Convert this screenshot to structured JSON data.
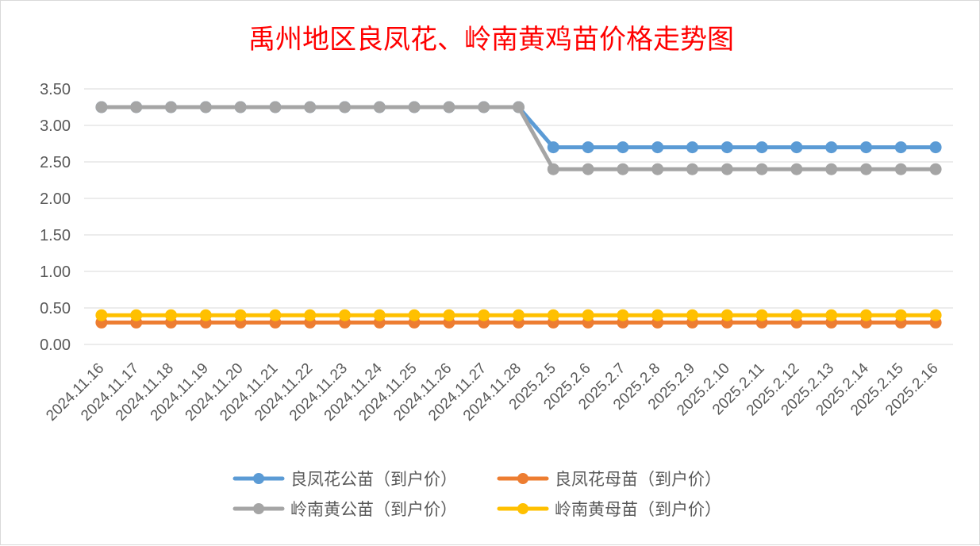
{
  "chart_data": {
    "type": "line",
    "title": "禹州地区良凤花、岭南黄鸡苗价格走势图",
    "xlabel": "",
    "ylabel": "",
    "ylim": [
      0,
      3.5
    ],
    "yticks": [
      "0.00",
      "0.50",
      "1.00",
      "1.50",
      "2.00",
      "2.50",
      "3.00",
      "3.50"
    ],
    "grid": true,
    "legend_position": "bottom",
    "categories": [
      "2024.11.16",
      "2024.11.17",
      "2024.11.18",
      "2024.11.19",
      "2024.11.20",
      "2024.11.21",
      "2024.11.22",
      "2024.11.23",
      "2024.11.24",
      "2024.11.25",
      "2024.11.26",
      "2024.11.27",
      "2024.11.28",
      "2025.2.5",
      "2025.2.6",
      "2025.2.7",
      "2025.2.8",
      "2025.2.9",
      "2025.2.10",
      "2025.2.11",
      "2025.2.12",
      "2025.2.13",
      "2025.2.14",
      "2025.2.15",
      "2025.2.16"
    ],
    "series": [
      {
        "name": "良凤花公苗（到户价）",
        "color": "#5b9bd5",
        "values": [
          3.25,
          3.25,
          3.25,
          3.25,
          3.25,
          3.25,
          3.25,
          3.25,
          3.25,
          3.25,
          3.25,
          3.25,
          3.25,
          2.7,
          2.7,
          2.7,
          2.7,
          2.7,
          2.7,
          2.7,
          2.7,
          2.7,
          2.7,
          2.7,
          2.7
        ]
      },
      {
        "name": "良凤花母苗（到户价）",
        "color": "#ed7d31",
        "values": [
          0.3,
          0.3,
          0.3,
          0.3,
          0.3,
          0.3,
          0.3,
          0.3,
          0.3,
          0.3,
          0.3,
          0.3,
          0.3,
          0.3,
          0.3,
          0.3,
          0.3,
          0.3,
          0.3,
          0.3,
          0.3,
          0.3,
          0.3,
          0.3,
          0.3
        ]
      },
      {
        "name": "岭南黄公苗（到户价）",
        "color": "#a5a5a5",
        "values": [
          3.25,
          3.25,
          3.25,
          3.25,
          3.25,
          3.25,
          3.25,
          3.25,
          3.25,
          3.25,
          3.25,
          3.25,
          3.25,
          2.4,
          2.4,
          2.4,
          2.4,
          2.4,
          2.4,
          2.4,
          2.4,
          2.4,
          2.4,
          2.4,
          2.4
        ]
      },
      {
        "name": "岭南黄母苗（到户价）",
        "color": "#ffc000",
        "values": [
          0.4,
          0.4,
          0.4,
          0.4,
          0.4,
          0.4,
          0.4,
          0.4,
          0.4,
          0.4,
          0.4,
          0.4,
          0.4,
          0.4,
          0.4,
          0.4,
          0.4,
          0.4,
          0.4,
          0.4,
          0.4,
          0.4,
          0.4,
          0.4,
          0.4
        ]
      }
    ]
  }
}
